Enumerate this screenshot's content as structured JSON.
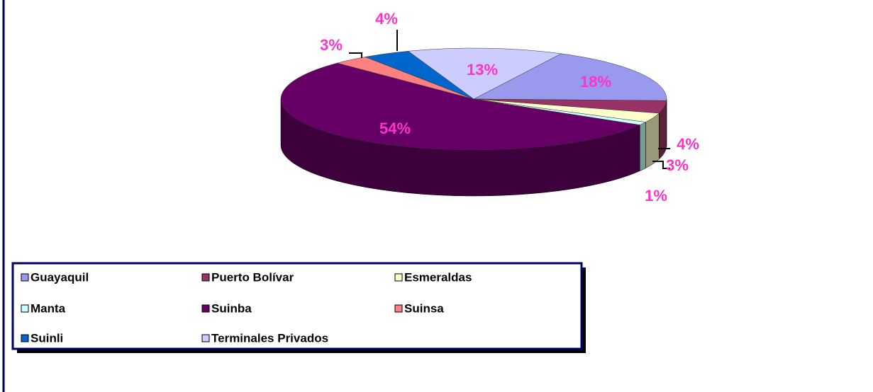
{
  "chart_data": {
    "type": "pie",
    "categories": [
      "Guayaquil",
      "Puerto Bolívar",
      "Esmeraldas",
      "Manta",
      "Suinba",
      "Suinsa",
      "Suinli",
      "Terminales Privados"
    ],
    "values": [
      18,
      4,
      3,
      1,
      54,
      3,
      4,
      13
    ],
    "value_labels": [
      "18%",
      "4%",
      "3%",
      "1%",
      "54%",
      "3%",
      "4%",
      "13%"
    ],
    "colors": [
      "#9999ee",
      "#993366",
      "#ffffcc",
      "#ccffff",
      "#660066",
      "#ff8080",
      "#0066cc",
      "#ccccff"
    ],
    "legend": "bottom"
  }
}
